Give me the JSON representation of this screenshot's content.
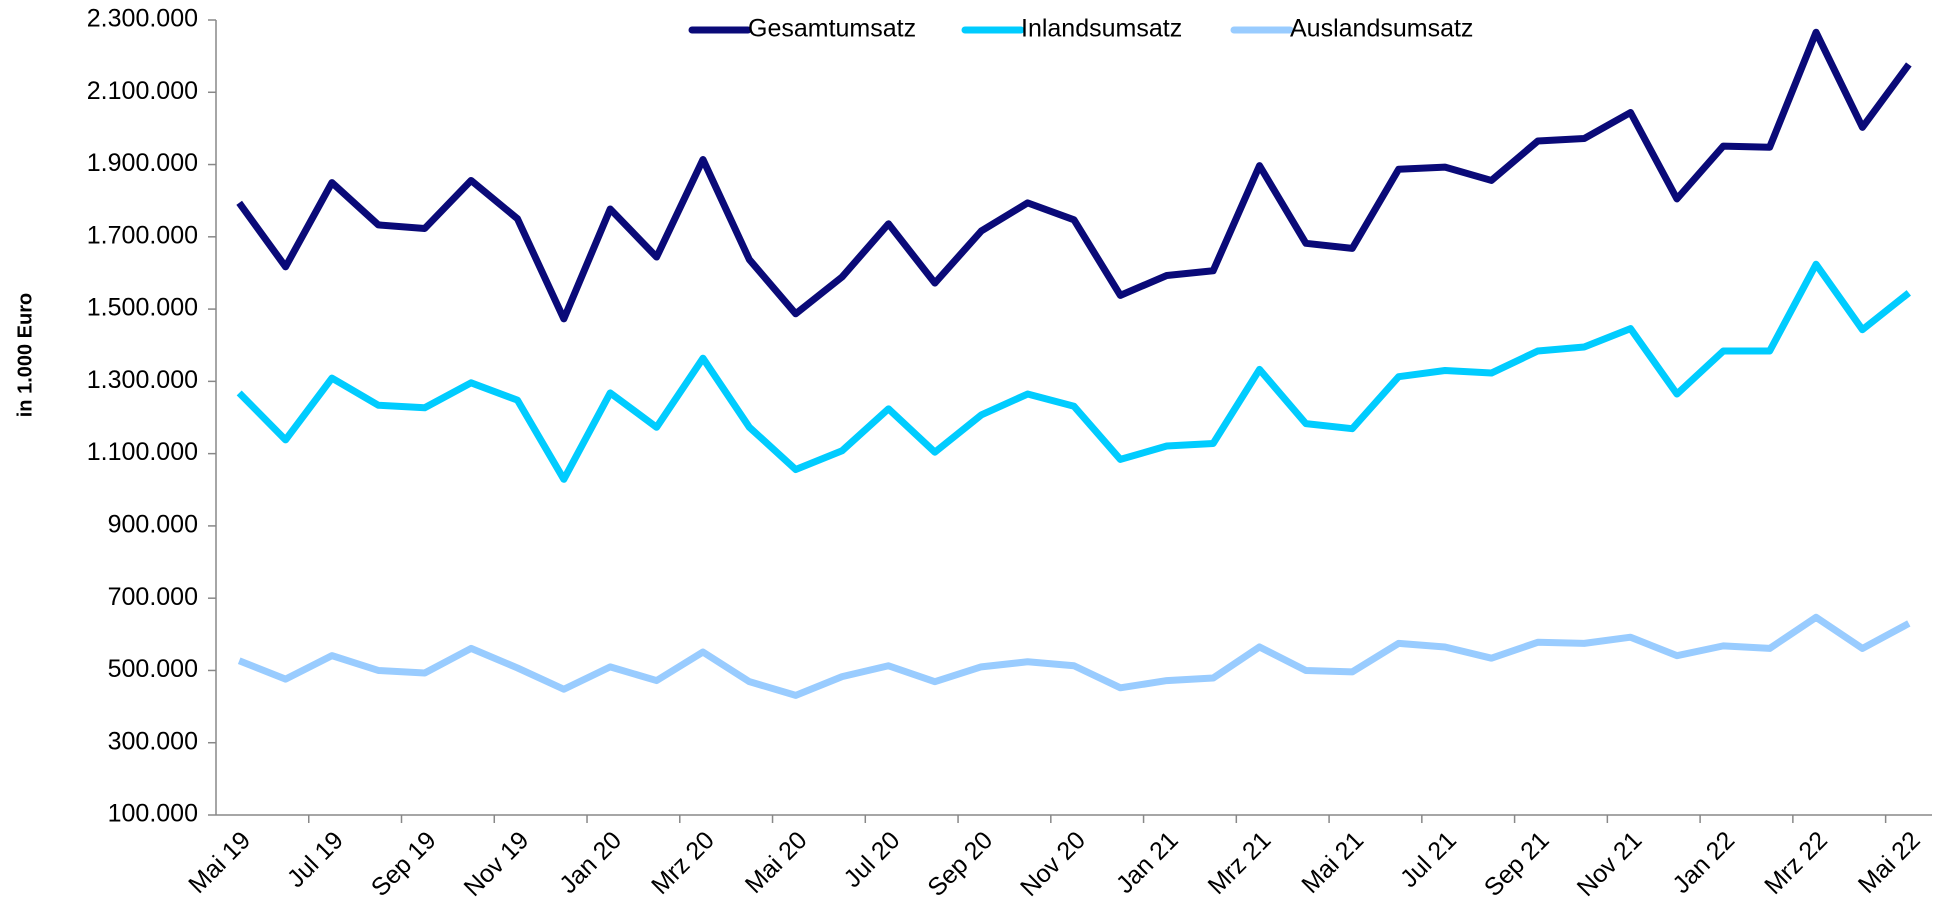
{
  "chart_data": {
    "type": "line",
    "y_label": "in 1.000 Euro",
    "categories": [
      "Mai 19",
      null,
      "Jul 19",
      null,
      "Sep 19",
      null,
      "Nov 19",
      null,
      "Jan 20",
      null,
      "Mrz 20",
      null,
      "Mai 20",
      null,
      "Jul 20",
      null,
      "Sep 20",
      null,
      "Nov 20",
      null,
      "Jan 21",
      null,
      "Mrz 21",
      null,
      "Mai 21",
      null,
      "Jul 21",
      null,
      "Sep 21",
      null,
      "Nov 21",
      null,
      "Jan 22",
      null,
      "Mrz 22",
      null,
      "Mai 22"
    ],
    "series": [
      {
        "name": "Gesamtumsatz",
        "color": "#0a0a78",
        "values": [
          1794000,
          1617000,
          1850000,
          1733000,
          1723000,
          1856000,
          1750000,
          1473000,
          1777000,
          1644000,
          1914000,
          1637000,
          1487000,
          1589000,
          1736000,
          1572000,
          1716000,
          1794000,
          1747000,
          1538000,
          1593000,
          1606000,
          1897000,
          1682000,
          1668000,
          1887000,
          1893000,
          1856000,
          1965000,
          1972000,
          2044000,
          1805000,
          1951000,
          1948000,
          2266000,
          2003000,
          2177000
        ]
      },
      {
        "name": "Inlandsumsatz",
        "color": "#00ccff",
        "values": [
          1268000,
          1138000,
          1309000,
          1234000,
          1227000,
          1296000,
          1248000,
          1029000,
          1268000,
          1173000,
          1364000,
          1173000,
          1056000,
          1108000,
          1224000,
          1104000,
          1207000,
          1265000,
          1231000,
          1084000,
          1121000,
          1128000,
          1333000,
          1183000,
          1169000,
          1313000,
          1330000,
          1323000,
          1384000,
          1395000,
          1446000,
          1265000,
          1384000,
          1384000,
          1624000,
          1443000,
          1545000
        ]
      },
      {
        "name": "Auslandsumsatz",
        "color": "#99ccff",
        "values": [
          527000,
          476000,
          541000,
          500000,
          493000,
          561000,
          507000,
          448000,
          510000,
          472000,
          551000,
          469000,
          431000,
          483000,
          513000,
          469000,
          510000,
          524000,
          513000,
          452000,
          472000,
          479000,
          565000,
          500000,
          496000,
          575000,
          565000,
          534000,
          578000,
          575000,
          592000,
          541000,
          568000,
          561000,
          647000,
          561000,
          630000
        ]
      }
    ],
    "ylim": [
      100000,
      2300000
    ],
    "yticks": [
      {
        "value": 100000,
        "label": "100.000"
      },
      {
        "value": 300000,
        "label": "300.000"
      },
      {
        "value": 500000,
        "label": "500.000"
      },
      {
        "value": 700000,
        "label": "700.000"
      },
      {
        "value": 900000,
        "label": "900.000"
      },
      {
        "value": 1100000,
        "label": "1.100.000"
      },
      {
        "value": 1300000,
        "label": "1.300.000"
      },
      {
        "value": 1500000,
        "label": "1.500.000"
      },
      {
        "value": 1700000,
        "label": "1.700.000"
      },
      {
        "value": 1900000,
        "label": "1.900.000"
      },
      {
        "value": 2100000,
        "label": "2.100.000"
      },
      {
        "value": 2300000,
        "label": "2.300.000"
      }
    ],
    "legend": "top",
    "grid": false
  }
}
